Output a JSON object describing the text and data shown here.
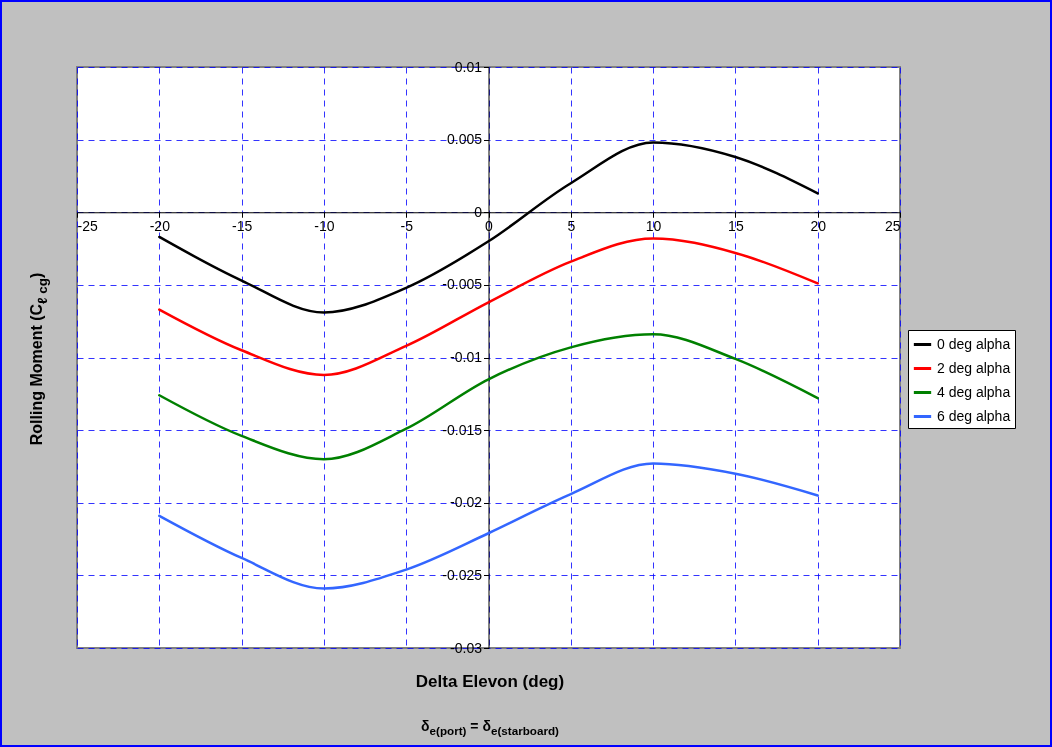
{
  "chart_data": {
    "type": "line",
    "xlabel": "Delta Elevon (deg)",
    "ylabel": "Rolling Moment (C$_{ℓ cg}$)",
    "annotations": [
      "δ$_{e(port)}$ = δ$_{e(starboard)}$"
    ],
    "x": [
      -20,
      -15,
      -10,
      -5,
      0,
      5,
      10,
      15,
      20
    ],
    "series": [
      {
        "name": "0 deg alpha",
        "color": "#000000",
        "values": [
          -0.0017,
          -0.0047,
          -0.0069,
          -0.0052,
          -0.002,
          0.002,
          0.0048,
          0.0038,
          0.0013
        ]
      },
      {
        "name": "2 deg alpha",
        "color": "#ff0000",
        "values": [
          -0.0067,
          -0.0095,
          -0.0112,
          -0.0092,
          -0.0062,
          -0.0034,
          -0.0018,
          -0.0028,
          -0.0049
        ]
      },
      {
        "name": "4 deg alpha",
        "color": "#008000",
        "values": [
          -0.0126,
          -0.0154,
          -0.017,
          -0.0149,
          -0.0115,
          -0.0093,
          -0.0084,
          -0.0101,
          -0.0128
        ]
      },
      {
        "name": "6 deg alpha",
        "color": "#3366ff",
        "values": [
          -0.0209,
          -0.0238,
          -0.0259,
          -0.0246,
          -0.0221,
          -0.0194,
          -0.0173,
          -0.018,
          -0.0195
        ]
      }
    ],
    "xlim": [
      -25,
      25
    ],
    "xticks": [
      -25,
      -20,
      -15,
      -10,
      -5,
      0,
      5,
      10,
      15,
      20,
      25
    ],
    "ylim": [
      -0.03,
      0.01
    ],
    "yticks": [
      -0.03,
      -0.025,
      -0.02,
      -0.015,
      -0.01,
      -0.005,
      0,
      0.005,
      0.01
    ],
    "grid": true,
    "legend": "right"
  }
}
